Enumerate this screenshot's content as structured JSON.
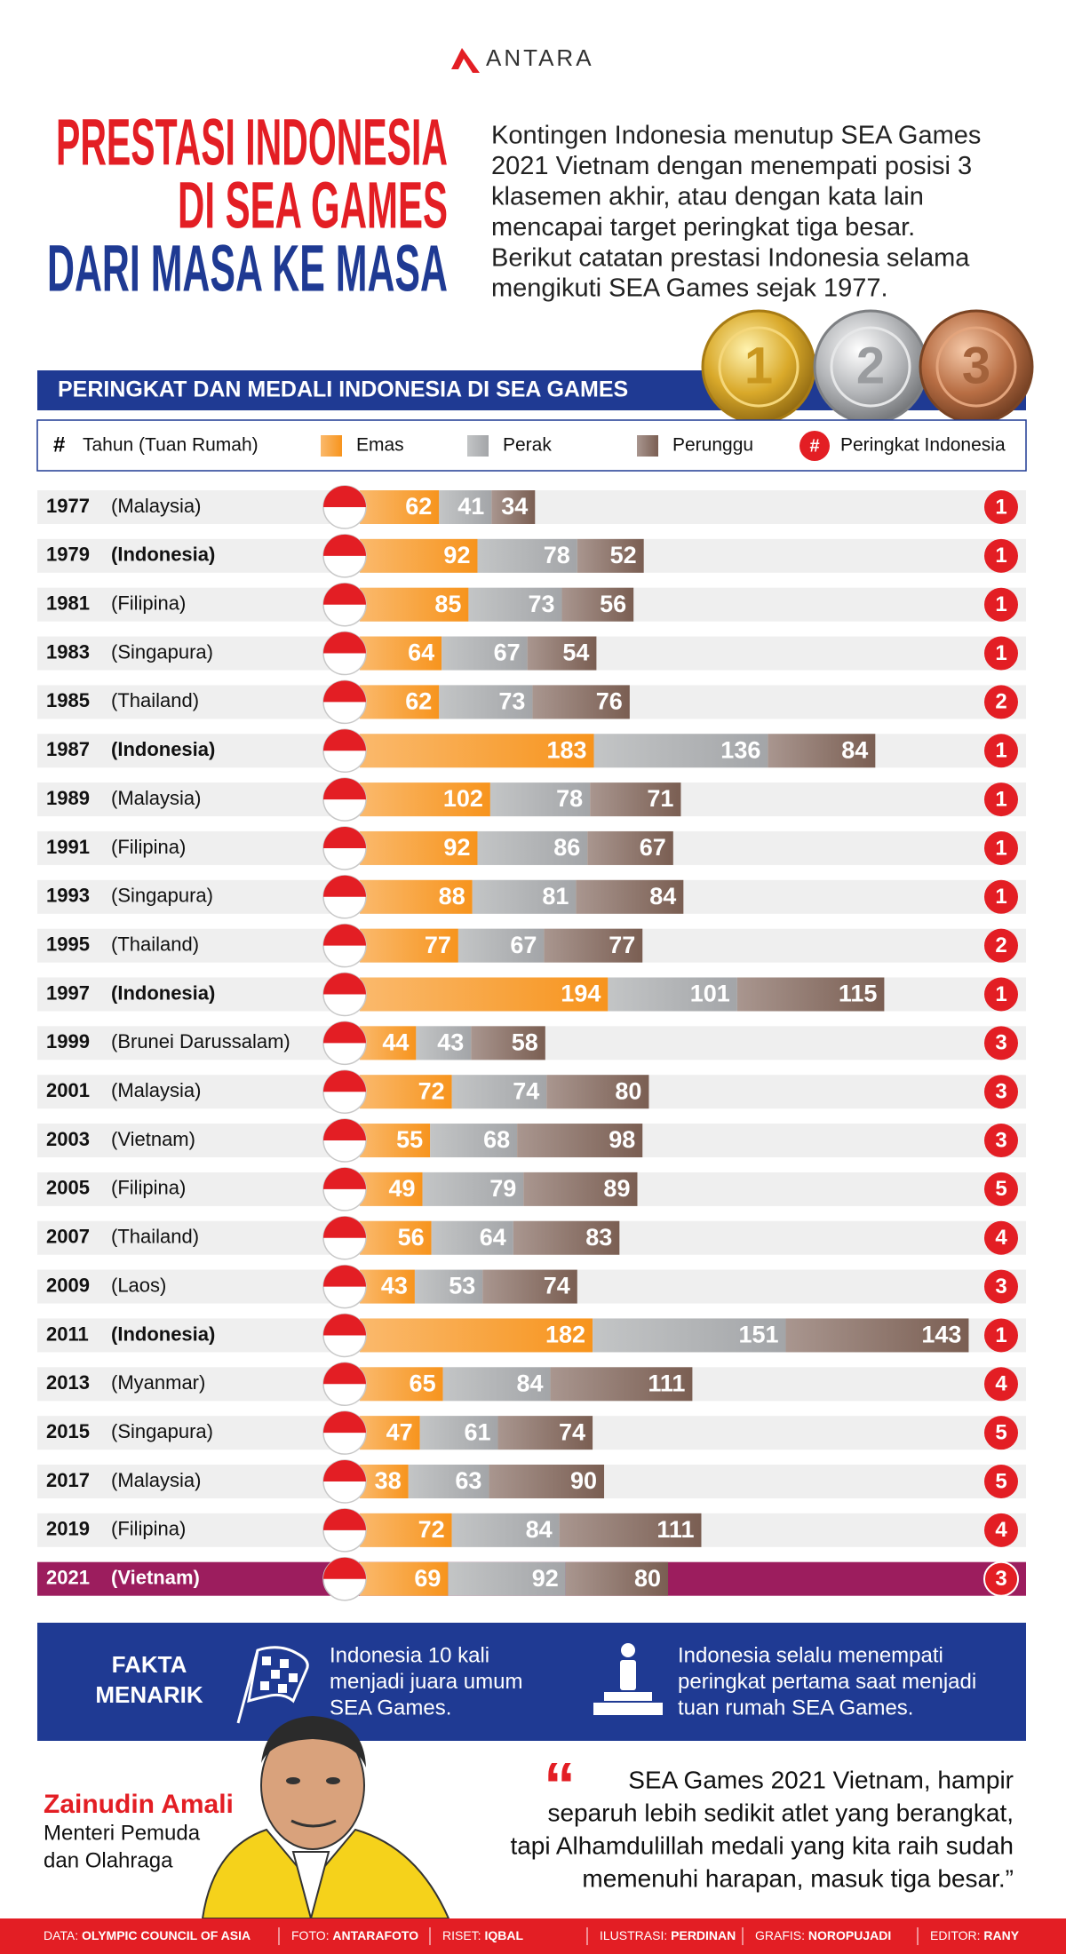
{
  "header": {
    "brand": "ANTARA",
    "title_lines": [
      "PRESTASI INDONESIA",
      "DI SEA GAMES",
      "DARI MASA KE MASA"
    ],
    "intro_lines": [
      "Kontingen Indonesia menutup SEA Games",
      "2021 Vietnam dengan menempati posisi 3",
      "klasemen akhir, atau dengan kata lain",
      "mencapai target peringkat tiga besar.",
      "Berikut catatan prestasi Indonesia selama",
      "mengikuti SEA Games sejak 1977."
    ],
    "medals": [
      "1",
      "2",
      "3"
    ]
  },
  "chart_data": {
    "type": "bar",
    "orientation": "horizontal",
    "stacked": true,
    "title": "PERINGKAT DAN MEDALI INDONESIA DI SEA GAMES",
    "legend": {
      "marker": "#",
      "year_label": "Tahun (Tuan Rumah)",
      "rank_label": "Peringkat Indonesia"
    },
    "categories": [
      "1977",
      "1979",
      "1981",
      "1983",
      "1985",
      "1987",
      "1989",
      "1991",
      "1993",
      "1995",
      "1997",
      "1999",
      "2001",
      "2003",
      "2005",
      "2007",
      "2009",
      "2011",
      "2013",
      "2015",
      "2017",
      "2019",
      "2021"
    ],
    "hosts": [
      "(Malaysia)",
      "(Indonesia)",
      "(Filipina)",
      "(Singapura)",
      "(Thailand)",
      "(Indonesia)",
      "(Malaysia)",
      "(Filipina)",
      "(Singapura)",
      "(Thailand)",
      "(Indonesia)",
      "(Brunei Darussalam)",
      "(Malaysia)",
      "(Vietnam)",
      "(Filipina)",
      "(Thailand)",
      "(Laos)",
      "(Indonesia)",
      "(Myanmar)",
      "(Singapura)",
      "(Malaysia)",
      "(Filipina)",
      "(Vietnam)"
    ],
    "series": [
      {
        "name": "Emas",
        "color": "#f7941d",
        "values": [
          62,
          92,
          85,
          64,
          62,
          183,
          102,
          92,
          88,
          77,
          194,
          44,
          72,
          55,
          49,
          56,
          43,
          182,
          65,
          47,
          38,
          72,
          69
        ]
      },
      {
        "name": "Perak",
        "color": "#a3a5a8",
        "values": [
          41,
          78,
          73,
          67,
          73,
          136,
          78,
          86,
          81,
          67,
          101,
          43,
          74,
          68,
          79,
          64,
          53,
          151,
          84,
          61,
          63,
          84,
          92
        ]
      },
      {
        "name": "Perunggu",
        "color": "#7a5e52",
        "values": [
          34,
          52,
          56,
          54,
          76,
          84,
          71,
          67,
          84,
          77,
          115,
          58,
          80,
          98,
          89,
          83,
          74,
          143,
          111,
          74,
          90,
          111,
          80
        ]
      }
    ],
    "ranks": [
      1,
      1,
      1,
      1,
      2,
      1,
      1,
      1,
      1,
      2,
      1,
      3,
      3,
      3,
      5,
      4,
      3,
      1,
      4,
      5,
      5,
      4,
      3
    ]
  },
  "facts": {
    "title_lines": [
      "FAKTA",
      "MENARIK"
    ],
    "items": [
      {
        "lines": [
          "Indonesia 10 kali",
          "menjadi juara umum",
          "SEA Games."
        ]
      },
      {
        "lines": [
          "Indonesia selalu menempati",
          "peringkat pertama saat menjadi",
          "tuan rumah SEA Games."
        ]
      }
    ]
  },
  "quote": {
    "name": "Zainudin Amali",
    "role_lines": [
      "Menteri Pemuda",
      "dan Olahraga"
    ],
    "mark": "“",
    "lines": [
      "SEA Games 2021 Vietnam, hampir",
      "separuh lebih sedikit atlet yang berangkat,",
      "tapi Alhamdulillah medali yang kita raih sudah",
      "memenuhi harapan, masuk tiga besar.”"
    ]
  },
  "footer": {
    "credits": [
      {
        "label": "DATA: ",
        "value": "OLYMPIC COUNCIL OF ASIA"
      },
      {
        "label": "FOTO: ",
        "value": "ANTARAFOTO"
      },
      {
        "label": "RISET: ",
        "value": "IQBAL"
      },
      {
        "label": "ILUSTRASI: ",
        "value": "PERDINAN"
      },
      {
        "label": "GRAFIS: ",
        "value": "NOROPUJADI"
      },
      {
        "label": "EDITOR: ",
        "value": "RANY"
      }
    ]
  }
}
